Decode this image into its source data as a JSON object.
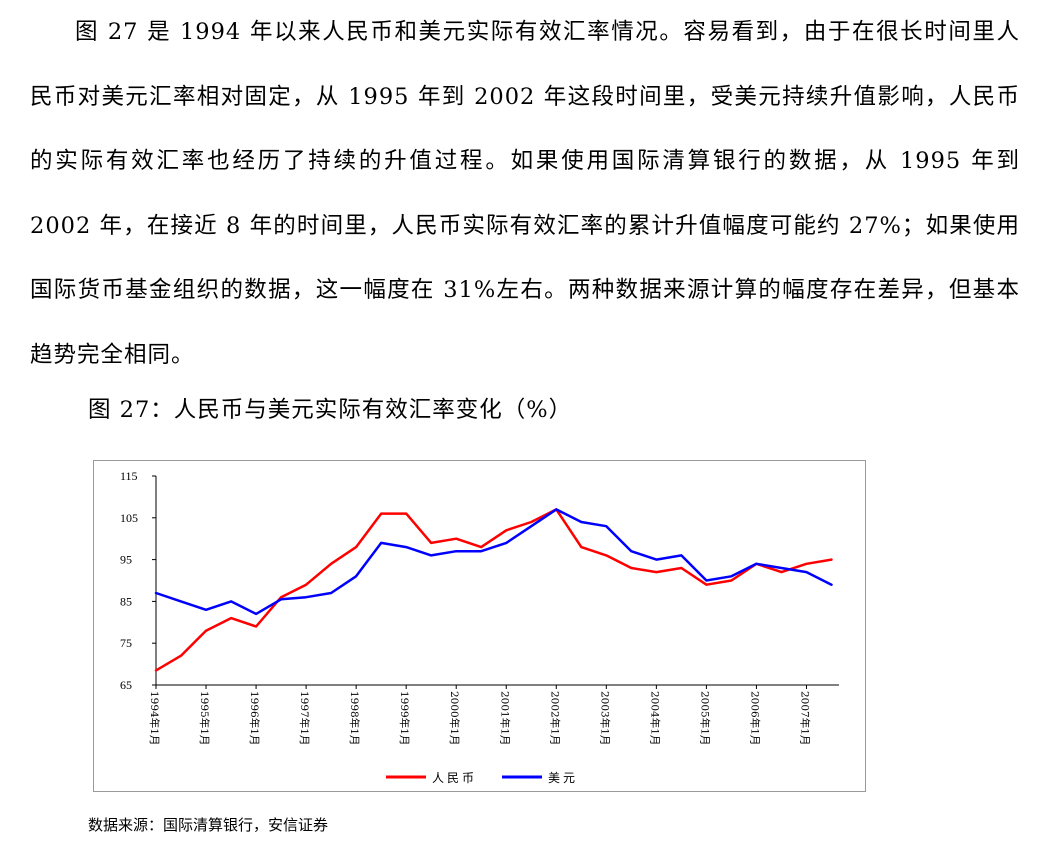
{
  "document": {
    "paragraph": "图 27 是 1994 年以来人民币和美元实际有效汇率情况。容易看到，由于在很长时间里人民币对美元汇率相对固定，从 1995 年到 2002 年这段时间里，受美元持续升值影响，人民币的实际有效汇率也经历了持续的升值过程。如果使用国际清算银行的数据，从 1995 年到 2002 年，在接近 8 年的时间里，人民币实际有效汇率的累计升值幅度可能约 27%；如果使用国际货币基金组织的数据，这一幅度在 31%左右。两种数据来源计算的幅度存在差异，但基本趋势完全相同。",
    "figure_title": "图 27：人民币与美元实际有效汇率变化（%）",
    "source": "数据来源：国际清算银行，安信证券"
  },
  "chart_data": {
    "type": "line",
    "title": "",
    "xlabel": "",
    "ylabel": "",
    "ylim": [
      65,
      115
    ],
    "yticks": [
      65,
      75,
      85,
      95,
      105,
      115
    ],
    "x": [
      "1994年1月",
      "1994年7月",
      "1995年1月",
      "1995年7月",
      "1996年1月",
      "1996年7月",
      "1997年1月",
      "1997年7月",
      "1998年1月",
      "1998年7月",
      "1999年1月",
      "1999年7月",
      "2000年1月",
      "2000年7月",
      "2001年1月",
      "2001年7月",
      "2002年1月",
      "2002年7月",
      "2003年1月",
      "2003年7月",
      "2004年1月",
      "2004年7月",
      "2005年1月",
      "2005年7月",
      "2006年1月",
      "2006年7月",
      "2007年1月",
      "2007年7月"
    ],
    "xtick_labels": [
      "1994年1月",
      "1995年1月",
      "1996年1月",
      "1997年1月",
      "1998年1月",
      "1999年1月",
      "2000年1月",
      "2001年1月",
      "2002年1月",
      "2003年1月",
      "2004年1月",
      "2005年1月",
      "2006年1月",
      "2007年1月"
    ],
    "series": [
      {
        "name": "人民币",
        "color": "#ff0000",
        "values": [
          68.5,
          72,
          78,
          81,
          79,
          86,
          89,
          94,
          98,
          106,
          106,
          99,
          100,
          98,
          102,
          104,
          107,
          98,
          96,
          93,
          92,
          93,
          89,
          90,
          94,
          92,
          94,
          95
        ]
      },
      {
        "name": "美元",
        "color": "#0000ff",
        "values": [
          87,
          85,
          83,
          85,
          82,
          85.5,
          86,
          87,
          91,
          99,
          98,
          96,
          97,
          97,
          99,
          103,
          107,
          104,
          103,
          97,
          95,
          96,
          90,
          91,
          94,
          93,
          92,
          89
        ]
      }
    ],
    "legend": {
      "placement": "bottom-center",
      "entries": [
        "人民币",
        "美元"
      ]
    },
    "grid": false
  }
}
